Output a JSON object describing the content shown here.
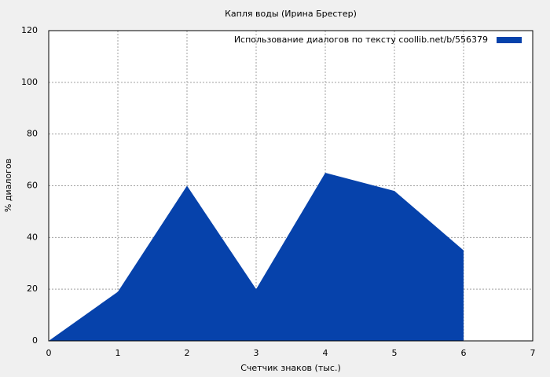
{
  "chart_data": {
    "type": "area",
    "title": "Капля воды (Ирина Брестер)",
    "x_label": "Счетчик знаков (тыс.)",
    "y_label": "% диалогов",
    "x": [
      0,
      1,
      2,
      3,
      4,
      5,
      6
    ],
    "series": [
      {
        "name": "Использование диалогов по тексту  coollib.net/b/556379",
        "color": "#0642ab",
        "values": [
          0,
          19,
          60,
          20,
          65,
          58,
          35
        ]
      }
    ],
    "xlim": [
      0,
      7
    ],
    "xticks": [
      0,
      1,
      2,
      3,
      4,
      5,
      6,
      7
    ],
    "ylim": [
      0,
      120
    ],
    "yticks": [
      0,
      20,
      40,
      60,
      80,
      100,
      120
    ],
    "grid": true,
    "legend": "upper right"
  }
}
